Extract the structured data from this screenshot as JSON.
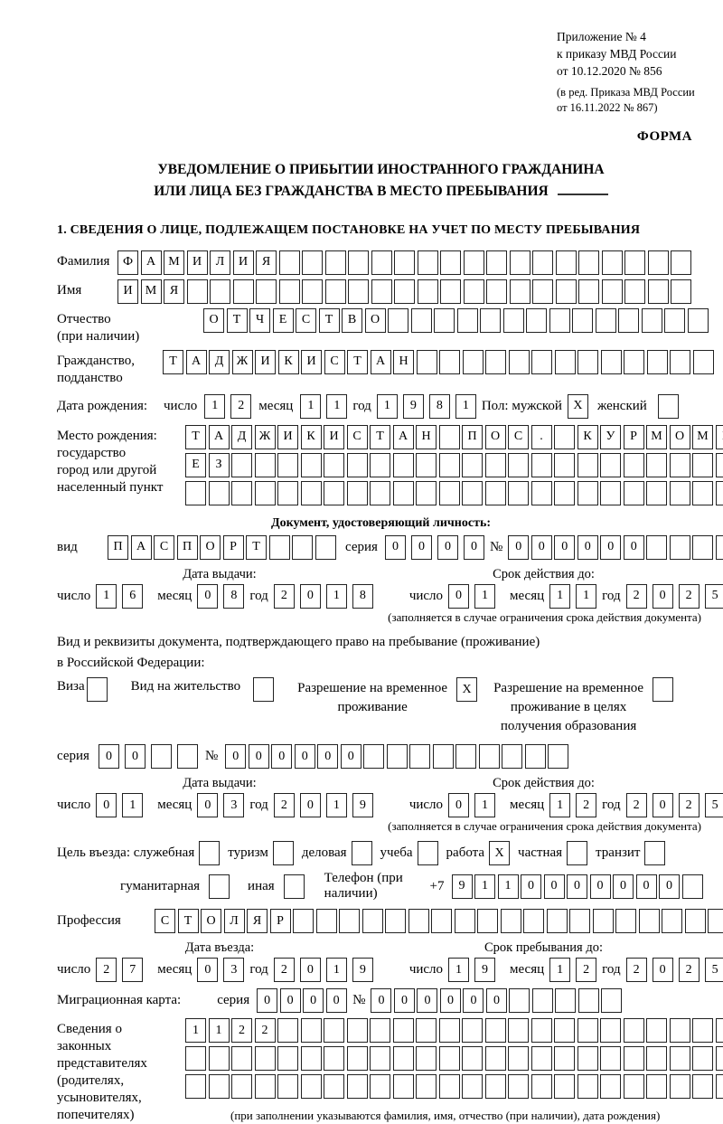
{
  "header": {
    "line1": "Приложение № 4",
    "line2": "к приказу МВД России",
    "line3": "от 10.12.2020 № 856",
    "line4": "(в ред. Приказа МВД России",
    "line5": "от 16.11.2022 № 867)",
    "forma": "ФОРМА"
  },
  "title": {
    "line1": "УВЕДОМЛЕНИЕ О ПРИБЫТИИ ИНОСТРАННОГО ГРАЖДАНИНА",
    "line2": "ИЛИ ЛИЦА БЕЗ ГРАЖДАНСТВА В МЕСТО ПРЕБЫВАНИЯ"
  },
  "section1": {
    "title": "1. СВЕДЕНИЯ О ЛИЦЕ, ПОДЛЕЖАЩЕМ ПОСТАНОВКЕ НА УЧЕТ ПО МЕСТУ ПРЕБЫВАНИЯ"
  },
  "labels": {
    "surname": "Фамилия",
    "name": "Имя",
    "patronymic_1": "Отчество",
    "patronymic_2": "(при наличии)",
    "citizenship_1": "Гражданство,",
    "citizenship_2": "подданство",
    "birthdate": "Дата рождения:",
    "day": "число",
    "month": "месяц",
    "year": "год",
    "gender": "Пол: мужской",
    "female": "женский",
    "birthplace_1": "Место рождения:",
    "birthplace_2": "государство",
    "birthplace_3": "город или другой",
    "birthplace_4": "населенный пункт",
    "iddoc_title": "Документ, удостоверяющий личность:",
    "vid": "вид",
    "seriya": "серия",
    "nomer": "№",
    "issue_date": "Дата выдачи:",
    "valid_until": "Срок действия до:",
    "restrict_note": "(заполняется в случае ограничения срока действия документа)",
    "resdoc_1": "Вид и реквизиты документа, подтверждающего право на пребывание (проживание)",
    "resdoc_2": "в Российской Федерации:",
    "visa": "Виза",
    "residence_permit": "Вид на жительство",
    "rvp_1": "Разрешение на временное",
    "rvp_2": "проживание",
    "rvp_edu_1": "Разрешение на временное",
    "rvp_edu_2": "проживание в целях",
    "rvp_edu_3": "получения образования",
    "purpose": "Цель въезда: служебная",
    "p_tourism": "туризм",
    "p_business": "деловая",
    "p_study": "учеба",
    "p_work": "работа",
    "p_private": "частная",
    "p_transit": "транзит",
    "p_humanitarian": "гуманитарная",
    "p_other": "иная",
    "phone": "Телефон (при наличии)",
    "phone_prefix": "+7",
    "profession": "Профессия",
    "entry_date": "Дата въезда:",
    "stay_until": "Срок пребывания до:",
    "migration_card": "Миграционная карта:",
    "reps_1": "Сведения о",
    "reps_2": "законных",
    "reps_3": "представителях",
    "reps_4": "(родителях,",
    "reps_5": "усыновителях,",
    "reps_6": "попечителях)",
    "reps_note": "(при заполнении указываются фамилия, имя, отчество (при наличии), дата рождения)"
  },
  "fields": {
    "surname": {
      "value": "ФАМИЛИЯ",
      "count": 25
    },
    "name": {
      "value": "ИМЯ",
      "count": 25
    },
    "patronymic": {
      "value": "ОТЧЕСТВО",
      "count": 22
    },
    "citizenship": {
      "value": "ТАДЖИКИСТАН",
      "count": 24
    },
    "birth_day": "12",
    "birth_month": "11",
    "birth_year": "1981",
    "birthplace_row1": {
      "value": "ТАДЖИКИСТАН ПОС. КУРМОМБ",
      "count": 24
    },
    "birthplace_row2": {
      "value": "ЕЗ",
      "count": 24
    },
    "birthplace_row3": {
      "value": "",
      "count": 24
    },
    "iddoc_vid": {
      "value": "ПАСПОРТ",
      "count": 10
    },
    "iddoc_seriya": {
      "value": "0000",
      "count": 4
    },
    "iddoc_nomer": {
      "value": "000000",
      "count": 11
    },
    "id_issue_day": "16",
    "id_issue_month": "08",
    "id_issue_year": "2018",
    "id_valid_day": "01",
    "id_valid_month": "11",
    "id_valid_year": "2025",
    "resdoc_seriya": {
      "value": "00",
      "count": 4
    },
    "resdoc_nomer": {
      "value": "000000",
      "count": 15
    },
    "res_issue_day": "01",
    "res_issue_month": "03",
    "res_issue_year": "2019",
    "res_valid_day": "01",
    "res_valid_month": "12",
    "res_valid_year": "2025",
    "phone_number": {
      "value": "9110000000",
      "count": 11
    },
    "profession": {
      "value": "СТОЛЯР",
      "count": 25
    },
    "entry_day": "27",
    "entry_month": "03",
    "entry_year": "2019",
    "stay_day": "19",
    "stay_month": "12",
    "stay_year": "2025",
    "mig_seriya": {
      "value": "0000",
      "count": 4
    },
    "mig_nomer": {
      "value": "000000",
      "count": 11
    },
    "reps_row1": {
      "value": "1122",
      "count": 24
    },
    "reps_row2": {
      "value": "",
      "count": 24
    },
    "reps_row3": {
      "value": "",
      "count": 24
    }
  },
  "checks": {
    "gender_male": "X",
    "gender_female": "",
    "visa": "",
    "residence_permit": "",
    "rvp": "X",
    "rvp_edu": "",
    "p_official": "",
    "p_tourism": "",
    "p_business": "",
    "p_study": "",
    "p_work": "X",
    "p_private": "",
    "p_transit": "",
    "p_humanitarian": "",
    "p_other": ""
  }
}
